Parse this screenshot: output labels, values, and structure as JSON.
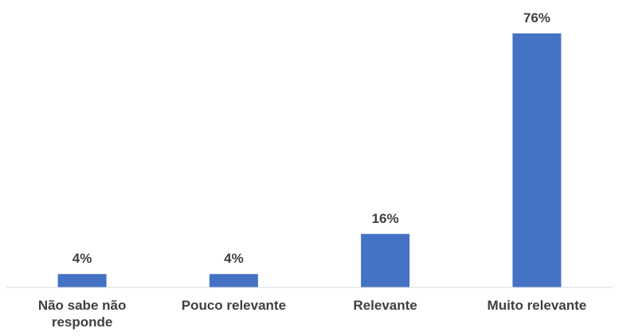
{
  "chart_data": {
    "type": "bar",
    "categories": [
      "Não sabe não responde",
      "Pouco relevante",
      "Relevante",
      "Muito relevante"
    ],
    "values": [
      4,
      4,
      16,
      76
    ],
    "value_labels": [
      "4%",
      "4%",
      "16%",
      "76%"
    ],
    "title": "",
    "xlabel": "",
    "ylabel": "",
    "ylim": [
      0,
      76
    ],
    "grid": false,
    "legend": "none",
    "bar_color": "#4472C4",
    "axis_color": "#D9D9D9",
    "text_color": "#404040"
  }
}
